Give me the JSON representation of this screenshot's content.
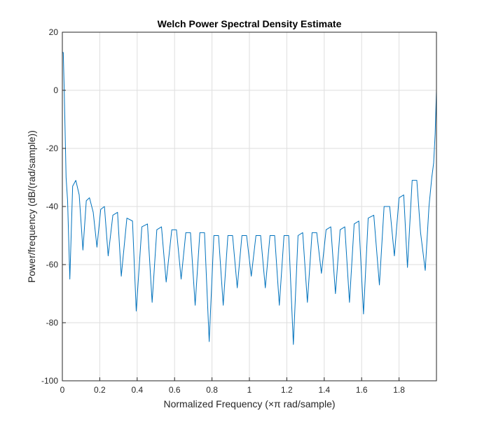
{
  "chart_data": {
    "type": "line",
    "title": "Welch Power Spectral Density Estimate",
    "xlabel": "Normalized Frequency  (×π rad/sample)",
    "ylabel": "Power/frequency (dB/(rad/sample))",
    "xlim": [
      0,
      2
    ],
    "ylim": [
      -100,
      20
    ],
    "x_ticks": [
      0,
      0.2,
      0.4,
      0.6,
      0.8,
      1,
      1.2,
      1.4,
      1.6,
      1.8
    ],
    "x_tick_labels": [
      "0",
      "0.2",
      "0.4",
      "0.6",
      "0.8",
      "1",
      "1.2",
      "1.4",
      "1.6",
      "1.8"
    ],
    "y_ticks": [
      -100,
      -80,
      -60,
      -40,
      -20,
      0,
      20
    ],
    "y_tick_labels": [
      "-100",
      "-80",
      "-60",
      "-40",
      "-20",
      "0",
      "20"
    ],
    "grid": true,
    "series": [
      {
        "color": "#0072BD",
        "x": [
          0,
          0.005,
          0.01,
          0.02,
          0.028,
          0.04,
          0.055,
          0.072,
          0.09,
          0.11,
          0.128,
          0.145,
          0.165,
          0.185,
          0.205,
          0.225,
          0.245,
          0.27,
          0.295,
          0.315,
          0.345,
          0.375,
          0.395,
          0.425,
          0.455,
          0.48,
          0.505,
          0.53,
          0.555,
          0.585,
          0.61,
          0.635,
          0.66,
          0.685,
          0.71,
          0.735,
          0.76,
          0.785,
          0.81,
          0.835,
          0.86,
          0.885,
          0.91,
          0.935,
          0.96,
          0.985,
          1.01,
          1.035,
          1.06,
          1.085,
          1.11,
          1.135,
          1.16,
          1.185,
          1.21,
          1.235,
          1.26,
          1.285,
          1.31,
          1.335,
          1.36,
          1.385,
          1.41,
          1.435,
          1.46,
          1.485,
          1.51,
          1.535,
          1.56,
          1.585,
          1.61,
          1.635,
          1.665,
          1.695,
          1.72,
          1.75,
          1.775,
          1.8,
          1.825,
          1.845,
          1.87,
          1.895,
          1.915,
          1.94,
          1.96,
          1.975,
          1.985,
          1.993,
          2.0
        ],
        "y": [
          13,
          13,
          0,
          -30,
          -38,
          -65,
          -33,
          -31,
          -36,
          -55,
          -38,
          -37,
          -42,
          -54,
          -41,
          -40,
          -57,
          -43,
          -42,
          -64,
          -44,
          -45,
          -76,
          -47,
          -46,
          -73,
          -48,
          -47,
          -66,
          -48,
          -48,
          -65,
          -49,
          -49,
          -74,
          -49,
          -49,
          -86.5,
          -50,
          -50,
          -74,
          -50,
          -50,
          -68,
          -50,
          -50,
          -64,
          -50,
          -50,
          -68,
          -50,
          -50,
          -74,
          -50,
          -50,
          -87.5,
          -50,
          -49,
          -73,
          -49,
          -49,
          -63,
          -48,
          -47,
          -70,
          -48,
          -47,
          -73,
          -46,
          -45,
          -77,
          -44,
          -43,
          -67,
          -40,
          -40,
          -57,
          -37,
          -36,
          -61,
          -31,
          -31,
          -49,
          -62,
          -40,
          -30,
          -25,
          -15,
          0
        ]
      }
    ]
  }
}
